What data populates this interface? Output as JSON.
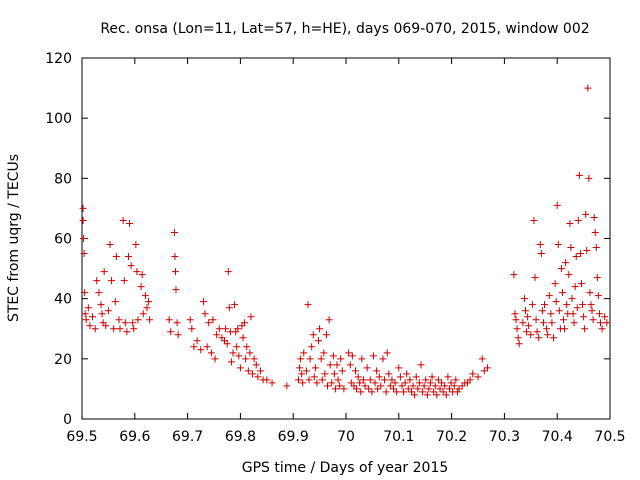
{
  "chart_data": {
    "type": "scatter",
    "title": "Rec. onsa (Lon=11, Lat=57, h=HE), days 069-070, 2015, window 002",
    "xlabel": "GPS time / Days of year 2015",
    "ylabel": "STEC from uqrg / TECUs",
    "xlim": [
      69.5,
      70.5
    ],
    "ylim": [
      0,
      120
    ],
    "xticks": [
      "69.5",
      "69.6",
      "69.7",
      "69.8",
      "69.9",
      "70",
      "70.1",
      "70.2",
      "70.3",
      "70.4",
      "70.5"
    ],
    "yticks": [
      "0",
      "20",
      "40",
      "60",
      "80",
      "100",
      "120"
    ],
    "grid": false,
    "marker": "plus",
    "color": "#cc0000",
    "points": [
      [
        69.502,
        70
      ],
      [
        69.502,
        66
      ],
      [
        69.503,
        60
      ],
      [
        69.504,
        55
      ],
      [
        69.505,
        42
      ],
      [
        69.506,
        35
      ],
      [
        69.508,
        33
      ],
      [
        69.512,
        37
      ],
      [
        69.515,
        31
      ],
      [
        69.52,
        34
      ],
      [
        69.525,
        30
      ],
      [
        69.528,
        46
      ],
      [
        69.532,
        42
      ],
      [
        69.536,
        38
      ],
      [
        69.538,
        35
      ],
      [
        69.54,
        32
      ],
      [
        69.542,
        49
      ],
      [
        69.545,
        31
      ],
      [
        69.55,
        36
      ],
      [
        69.553,
        58
      ],
      [
        69.556,
        46
      ],
      [
        69.56,
        30
      ],
      [
        69.563,
        39
      ],
      [
        69.565,
        54
      ],
      [
        69.57,
        33
      ],
      [
        69.572,
        30
      ],
      [
        69.578,
        66
      ],
      [
        69.58,
        46
      ],
      [
        69.582,
        32
      ],
      [
        69.585,
        29
      ],
      [
        69.588,
        54
      ],
      [
        69.59,
        65
      ],
      [
        69.593,
        51
      ],
      [
        69.596,
        32
      ],
      [
        69.598,
        30
      ],
      [
        69.602,
        58
      ],
      [
        69.604,
        49
      ],
      [
        69.606,
        33
      ],
      [
        69.612,
        44
      ],
      [
        69.614,
        48
      ],
      [
        69.616,
        35
      ],
      [
        69.62,
        41
      ],
      [
        69.623,
        37
      ],
      [
        69.626,
        39
      ],
      [
        69.628,
        33
      ],
      [
        69.665,
        33
      ],
      [
        69.668,
        29
      ],
      [
        69.675,
        62
      ],
      [
        69.676,
        54
      ],
      [
        69.677,
        49
      ],
      [
        69.678,
        43
      ],
      [
        69.68,
        32
      ],
      [
        69.682,
        28
      ],
      [
        69.705,
        33
      ],
      [
        69.708,
        30
      ],
      [
        69.712,
        24
      ],
      [
        69.718,
        26
      ],
      [
        69.725,
        23
      ],
      [
        69.73,
        39
      ],
      [
        69.733,
        35
      ],
      [
        69.737,
        24
      ],
      [
        69.74,
        32
      ],
      [
        69.745,
        22
      ],
      [
        69.748,
        33
      ],
      [
        69.752,
        20
      ],
      [
        69.755,
        28
      ],
      [
        69.76,
        30
      ],
      [
        69.765,
        27
      ],
      [
        69.77,
        26
      ],
      [
        69.772,
        30
      ],
      [
        69.775,
        25
      ],
      [
        69.777,
        49
      ],
      [
        69.779,
        37
      ],
      [
        69.781,
        29
      ],
      [
        69.783,
        19
      ],
      [
        69.786,
        22
      ],
      [
        69.789,
        38
      ],
      [
        69.791,
        29
      ],
      [
        69.793,
        24
      ],
      [
        69.795,
        30
      ],
      [
        69.797,
        21
      ],
      [
        69.8,
        17
      ],
      [
        69.803,
        31
      ],
      [
        69.805,
        27
      ],
      [
        69.808,
        32
      ],
      [
        69.81,
        20
      ],
      [
        69.812,
        24
      ],
      [
        69.815,
        16
      ],
      [
        69.818,
        22
      ],
      [
        69.82,
        34
      ],
      [
        69.823,
        15
      ],
      [
        69.826,
        20
      ],
      [
        69.83,
        18
      ],
      [
        69.833,
        14
      ],
      [
        69.838,
        16
      ],
      [
        69.843,
        13
      ],
      [
        69.85,
        13
      ],
      [
        69.86,
        12
      ],
      [
        69.888,
        11
      ],
      [
        69.91,
        13
      ],
      [
        69.912,
        17
      ],
      [
        69.914,
        20
      ],
      [
        69.916,
        15
      ],
      [
        69.918,
        12
      ],
      [
        69.92,
        22
      ],
      [
        69.925,
        16
      ],
      [
        69.928,
        38
      ],
      [
        69.93,
        13
      ],
      [
        69.932,
        20
      ],
      [
        69.935,
        24
      ],
      [
        69.938,
        28
      ],
      [
        69.94,
        14
      ],
      [
        69.942,
        17
      ],
      [
        69.945,
        12
      ],
      [
        69.948,
        26
      ],
      [
        69.95,
        30
      ],
      [
        69.953,
        20
      ],
      [
        69.955,
        13
      ],
      [
        69.958,
        22
      ],
      [
        69.96,
        15
      ],
      [
        69.963,
        28
      ],
      [
        69.965,
        11
      ],
      [
        69.968,
        33
      ],
      [
        69.97,
        18
      ],
      [
        69.973,
        12
      ],
      [
        69.976,
        21
      ],
      [
        69.978,
        15
      ],
      [
        69.98,
        10
      ],
      [
        69.983,
        18
      ],
      [
        69.985,
        13
      ],
      [
        69.988,
        11
      ],
      [
        69.99,
        20
      ],
      [
        69.993,
        16
      ],
      [
        69.996,
        10
      ],
      [
        70.005,
        22
      ],
      [
        70.008,
        18
      ],
      [
        70.01,
        12
      ],
      [
        70.012,
        21
      ],
      [
        70.015,
        11
      ],
      [
        70.018,
        16
      ],
      [
        70.02,
        10
      ],
      [
        70.023,
        14
      ],
      [
        70.026,
        12
      ],
      [
        70.028,
        9
      ],
      [
        70.03,
        20
      ],
      [
        70.033,
        13
      ],
      [
        70.036,
        11
      ],
      [
        70.04,
        17
      ],
      [
        70.043,
        10
      ],
      [
        70.046,
        13
      ],
      [
        70.049,
        9
      ],
      [
        70.052,
        21
      ],
      [
        70.055,
        12
      ],
      [
        70.058,
        16
      ],
      [
        70.06,
        10
      ],
      [
        70.063,
        14
      ],
      [
        70.066,
        11
      ],
      [
        70.07,
        20
      ],
      [
        70.073,
        13
      ],
      [
        70.076,
        9
      ],
      [
        70.078,
        22
      ],
      [
        70.081,
        15
      ],
      [
        70.084,
        11
      ],
      [
        70.087,
        13
      ],
      [
        70.09,
        10
      ],
      [
        70.093,
        12
      ],
      [
        70.096,
        9
      ],
      [
        70.1,
        17
      ],
      [
        70.103,
        14
      ],
      [
        70.106,
        11
      ],
      [
        70.109,
        9
      ],
      [
        70.112,
        12
      ],
      [
        70.115,
        15
      ],
      [
        70.118,
        10
      ],
      [
        70.121,
        13
      ],
      [
        70.124,
        9
      ],
      [
        70.127,
        11
      ],
      [
        70.13,
        8
      ],
      [
        70.133,
        14
      ],
      [
        70.136,
        10
      ],
      [
        70.139,
        12
      ],
      [
        70.142,
        18
      ],
      [
        70.145,
        9
      ],
      [
        70.148,
        11
      ],
      [
        70.151,
        13
      ],
      [
        70.154,
        8
      ],
      [
        70.157,
        10
      ],
      [
        70.16,
        12
      ],
      [
        70.163,
        14
      ],
      [
        70.166,
        9
      ],
      [
        70.169,
        11
      ],
      [
        70.172,
        8
      ],
      [
        70.175,
        13
      ],
      [
        70.178,
        10
      ],
      [
        70.181,
        12
      ],
      [
        70.184,
        9
      ],
      [
        70.187,
        11
      ],
      [
        70.19,
        8
      ],
      [
        70.193,
        14
      ],
      [
        70.196,
        10
      ],
      [
        70.199,
        12
      ],
      [
        70.202,
        9
      ],
      [
        70.205,
        11
      ],
      [
        70.208,
        13
      ],
      [
        70.211,
        9
      ],
      [
        70.214,
        10
      ],
      [
        70.22,
        11
      ],
      [
        70.225,
        12
      ],
      [
        70.23,
        12
      ],
      [
        70.235,
        13
      ],
      [
        70.24,
        15
      ],
      [
        70.25,
        14
      ],
      [
        70.258,
        20
      ],
      [
        70.262,
        16
      ],
      [
        70.268,
        17
      ],
      [
        70.318,
        48
      ],
      [
        70.32,
        35
      ],
      [
        70.322,
        33
      ],
      [
        70.324,
        30
      ],
      [
        70.326,
        27
      ],
      [
        70.328,
        25
      ],
      [
        70.335,
        32
      ],
      [
        70.338,
        40
      ],
      [
        70.34,
        36
      ],
      [
        70.342,
        29
      ],
      [
        70.344,
        34
      ],
      [
        70.346,
        31
      ],
      [
        70.35,
        28
      ],
      [
        70.353,
        38
      ],
      [
        70.356,
        66
      ],
      [
        70.358,
        47
      ],
      [
        70.36,
        33
      ],
      [
        70.362,
        29
      ],
      [
        70.365,
        27
      ],
      [
        70.368,
        58
      ],
      [
        70.37,
        55
      ],
      [
        70.372,
        36
      ],
      [
        70.374,
        32
      ],
      [
        70.376,
        38
      ],
      [
        70.38,
        30
      ],
      [
        70.382,
        28
      ],
      [
        70.385,
        41
      ],
      [
        70.388,
        35
      ],
      [
        70.39,
        32
      ],
      [
        70.393,
        27
      ],
      [
        70.396,
        45
      ],
      [
        70.398,
        39
      ],
      [
        70.4,
        71
      ],
      [
        70.402,
        58
      ],
      [
        70.404,
        36
      ],
      [
        70.406,
        30
      ],
      [
        70.408,
        50
      ],
      [
        70.41,
        42
      ],
      [
        70.412,
        33
      ],
      [
        70.414,
        30
      ],
      [
        70.416,
        52
      ],
      [
        70.418,
        38
      ],
      [
        70.42,
        35
      ],
      [
        70.422,
        48
      ],
      [
        70.424,
        65
      ],
      [
        70.426,
        57
      ],
      [
        70.428,
        40
      ],
      [
        70.43,
        35
      ],
      [
        70.432,
        32
      ],
      [
        70.434,
        44
      ],
      [
        70.436,
        54
      ],
      [
        70.438,
        37
      ],
      [
        70.44,
        66
      ],
      [
        70.442,
        81
      ],
      [
        70.444,
        55
      ],
      [
        70.446,
        45
      ],
      [
        70.448,
        38
      ],
      [
        70.45,
        34
      ],
      [
        70.452,
        30
      ],
      [
        70.454,
        68
      ],
      [
        70.456,
        56
      ],
      [
        70.458,
        110
      ],
      [
        70.46,
        80
      ],
      [
        70.462,
        42
      ],
      [
        70.464,
        38
      ],
      [
        70.466,
        36
      ],
      [
        70.468,
        33
      ],
      [
        70.47,
        67
      ],
      [
        70.472,
        62
      ],
      [
        70.474,
        57
      ],
      [
        70.476,
        47
      ],
      [
        70.478,
        41
      ],
      [
        70.48,
        35
      ],
      [
        70.482,
        32
      ],
      [
        70.485,
        30
      ],
      [
        70.49,
        34
      ],
      [
        70.494,
        32
      ]
    ]
  }
}
